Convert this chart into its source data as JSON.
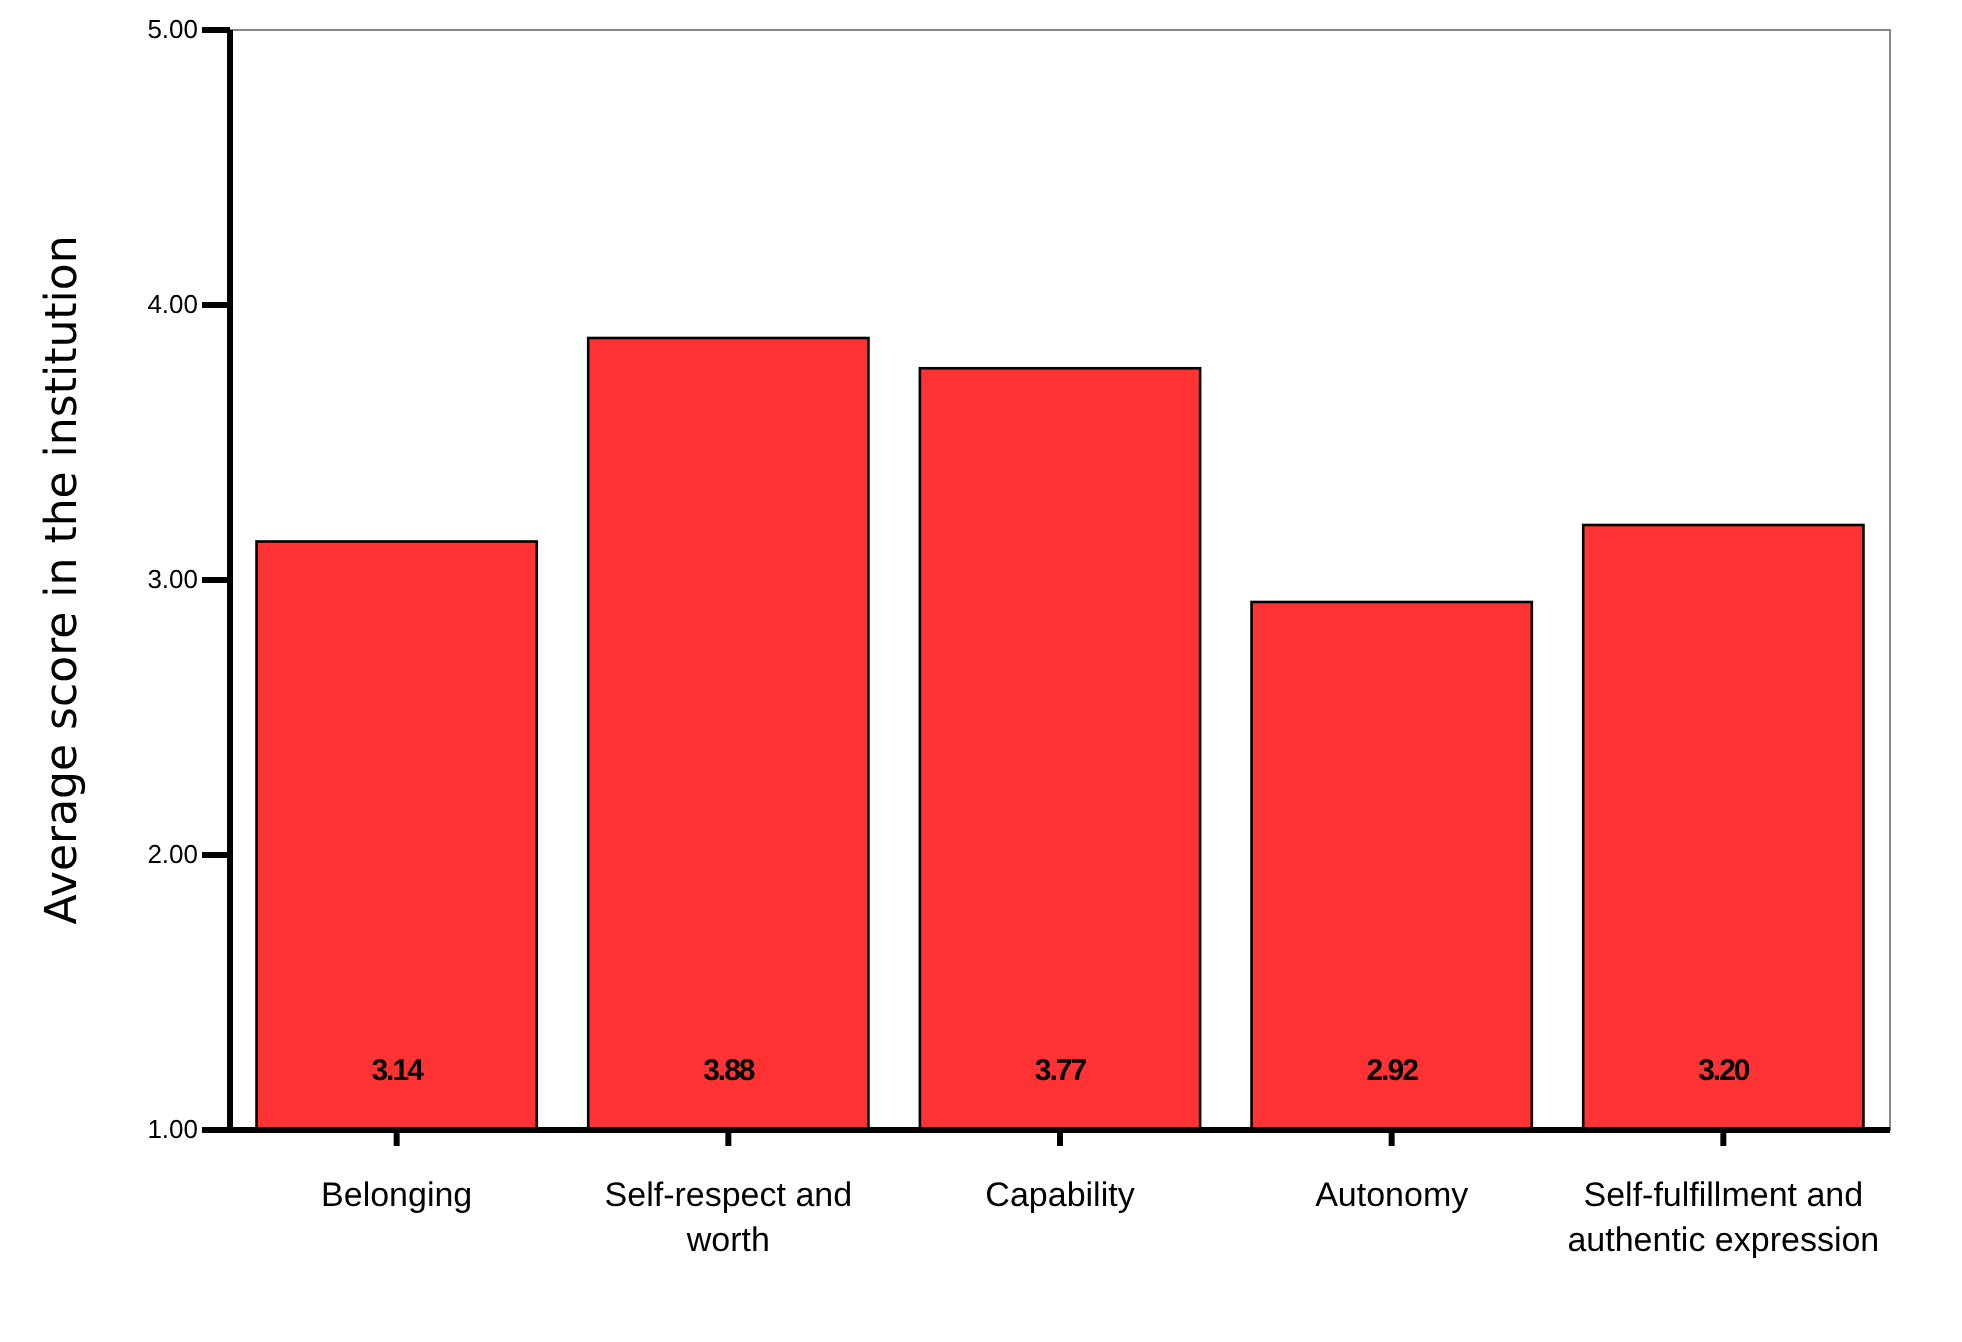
{
  "chart_data": {
    "type": "bar",
    "ylabel": "Average score in the institution",
    "categories": [
      "Belonging",
      "Self-respect and worth",
      "Capability",
      "Autonomy",
      "Self-fulfillment and authentic expression"
    ],
    "values": [
      3.14,
      3.88,
      3.77,
      2.92,
      3.2
    ],
    "value_labels": [
      "3.14",
      "3.88",
      "3.77",
      "2.92",
      "3.20"
    ],
    "color": "#ff3333",
    "ylim": [
      1,
      5
    ],
    "yticks": [
      {
        "value": 1,
        "label": "1.00"
      },
      {
        "value": 2,
        "label": "2.00"
      },
      {
        "value": 3,
        "label": "3.00"
      },
      {
        "value": 4,
        "label": "4.00"
      },
      {
        "value": 5,
        "label": "5.00"
      }
    ],
    "grid": false
  }
}
